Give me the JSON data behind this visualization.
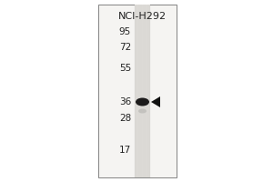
{
  "outer_bg": "#ffffff",
  "left_area_color": "#ffffff",
  "panel_bg": "#f5f4f2",
  "lane_color": "#dcdad6",
  "lane_stripe_color": "#c8c6c2",
  "cell_line_label": "NCI-H292",
  "mw_markers": [
    95,
    72,
    55,
    36,
    28,
    17
  ],
  "band_color": "#111111",
  "arrow_color": "#111111",
  "border_color": "#888888",
  "text_color": "#222222",
  "panel_border_color": "#555555"
}
